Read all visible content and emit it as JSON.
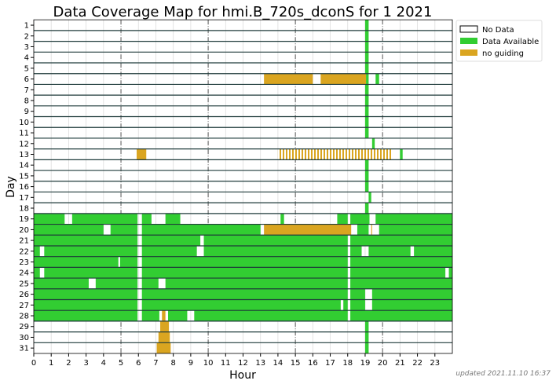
{
  "chart_data": {
    "type": "heatmap",
    "title": "Data Coverage Map for hmi.B_720s_dconS for 1 2021",
    "xlabel": "Hour",
    "ylabel": "Day",
    "xlim": [
      0,
      24
    ],
    "ylim": [
      31,
      1
    ],
    "x_ticks": [
      "0",
      "1",
      "2",
      "3",
      "4",
      "5",
      "6",
      "7",
      "8",
      "9",
      "10",
      "11",
      "12",
      "13",
      "14",
      "15",
      "16",
      "17",
      "18",
      "19",
      "20",
      "21",
      "22",
      "23"
    ],
    "y_ticks": [
      "1",
      "2",
      "3",
      "4",
      "5",
      "6",
      "7",
      "8",
      "9",
      "10",
      "11",
      "12",
      "13",
      "14",
      "15",
      "16",
      "17",
      "18",
      "19",
      "20",
      "21",
      "22",
      "23",
      "24",
      "25",
      "26",
      "27",
      "28",
      "29",
      "30",
      "31"
    ],
    "major_gridlines_hours": [
      5,
      10,
      15,
      20
    ],
    "legend": {
      "placement": "outside-top-right",
      "entries": [
        {
          "label": "No Data",
          "key": "none"
        },
        {
          "label": "Data Available",
          "key": "data"
        },
        {
          "label": "no guiding",
          "key": "noguide"
        }
      ]
    },
    "colors": {
      "data": "#32cd32",
      "noguide": "#daa520",
      "none": "#ffffff",
      "rowline": "#1e3a3a"
    },
    "days": [
      {
        "day": 1,
        "segments": [
          [
            19.0,
            19.2,
            "data"
          ]
        ]
      },
      {
        "day": 2,
        "segments": [
          [
            19.0,
            19.2,
            "data"
          ]
        ]
      },
      {
        "day": 3,
        "segments": [
          [
            19.0,
            19.2,
            "data"
          ]
        ]
      },
      {
        "day": 4,
        "segments": [
          [
            19.0,
            19.2,
            "data"
          ]
        ]
      },
      {
        "day": 5,
        "segments": [
          [
            19.0,
            19.2,
            "data"
          ]
        ]
      },
      {
        "day": 6,
        "segments": [
          [
            13.2,
            16.0,
            "noguide"
          ],
          [
            16.45,
            19.05,
            "noguide"
          ],
          [
            19.05,
            19.2,
            "data"
          ],
          [
            19.6,
            19.8,
            "data"
          ]
        ]
      },
      {
        "day": 7,
        "segments": [
          [
            19.0,
            19.2,
            "data"
          ]
        ]
      },
      {
        "day": 8,
        "segments": [
          [
            19.0,
            19.2,
            "data"
          ]
        ]
      },
      {
        "day": 9,
        "segments": [
          [
            19.0,
            19.2,
            "data"
          ]
        ]
      },
      {
        "day": 10,
        "segments": [
          [
            19.0,
            19.2,
            "data"
          ]
        ]
      },
      {
        "day": 11,
        "segments": [
          [
            19.0,
            19.2,
            "data"
          ]
        ]
      },
      {
        "day": 12,
        "segments": [
          [
            19.4,
            19.55,
            "data"
          ]
        ]
      },
      {
        "day": 13,
        "segments": [
          [
            5.9,
            6.45,
            "noguide"
          ],
          [
            14.0,
            20.55,
            "noguide_hatched"
          ],
          [
            21.0,
            21.15,
            "data"
          ]
        ]
      },
      {
        "day": 14,
        "segments": [
          [
            19.0,
            19.2,
            "data"
          ]
        ]
      },
      {
        "day": 15,
        "segments": [
          [
            19.0,
            19.2,
            "data"
          ]
        ]
      },
      {
        "day": 16,
        "segments": [
          [
            19.0,
            19.2,
            "data"
          ]
        ]
      },
      {
        "day": 17,
        "segments": [
          [
            19.2,
            19.35,
            "data"
          ]
        ]
      },
      {
        "day": 18,
        "segments": [
          [
            19.0,
            19.2,
            "data"
          ]
        ]
      },
      {
        "day": 19,
        "segments": [
          [
            0,
            1.77,
            "data"
          ],
          [
            2.2,
            5.95,
            "data"
          ],
          [
            6.2,
            6.75,
            "data"
          ],
          [
            7.55,
            8.4,
            "data"
          ],
          [
            14.15,
            14.35,
            "data"
          ],
          [
            17.4,
            18.0,
            "data"
          ],
          [
            18.15,
            19.25,
            "data"
          ],
          [
            19.6,
            24,
            "data"
          ]
        ]
      },
      {
        "day": 20,
        "segments": [
          [
            0,
            4.0,
            "data"
          ],
          [
            4.4,
            5.95,
            "data"
          ],
          [
            6.2,
            13.0,
            "data"
          ],
          [
            13.2,
            18.2,
            "noguide"
          ],
          [
            18.55,
            19.2,
            "data"
          ],
          [
            19.35,
            19.4,
            "noguide"
          ],
          [
            19.8,
            24,
            "data"
          ]
        ]
      },
      {
        "day": 21,
        "segments": [
          [
            0,
            5.95,
            "data"
          ],
          [
            6.2,
            9.55,
            "data"
          ],
          [
            9.75,
            18.0,
            "data"
          ],
          [
            18.15,
            24,
            "data"
          ]
        ]
      },
      {
        "day": 22,
        "segments": [
          [
            0,
            0.35,
            "data"
          ],
          [
            0.6,
            5.95,
            "data"
          ],
          [
            6.2,
            9.35,
            "data"
          ],
          [
            9.75,
            18.0,
            "data"
          ],
          [
            18.15,
            18.8,
            "data"
          ],
          [
            19.2,
            21.6,
            "data"
          ],
          [
            21.8,
            24,
            "data"
          ]
        ]
      },
      {
        "day": 23,
        "segments": [
          [
            0,
            4.85,
            "data"
          ],
          [
            4.95,
            5.95,
            "data"
          ],
          [
            6.2,
            18.0,
            "data"
          ],
          [
            18.15,
            24,
            "data"
          ]
        ]
      },
      {
        "day": 24,
        "segments": [
          [
            0,
            0.35,
            "data"
          ],
          [
            0.6,
            5.95,
            "data"
          ],
          [
            6.2,
            18.0,
            "data"
          ],
          [
            18.15,
            23.6,
            "data"
          ],
          [
            23.8,
            24,
            "data"
          ]
        ]
      },
      {
        "day": 25,
        "segments": [
          [
            0,
            3.15,
            "data"
          ],
          [
            3.55,
            5.95,
            "data"
          ],
          [
            6.2,
            7.15,
            "data"
          ],
          [
            7.55,
            18.0,
            "data"
          ],
          [
            18.15,
            24,
            "data"
          ]
        ]
      },
      {
        "day": 26,
        "segments": [
          [
            0,
            5.95,
            "data"
          ],
          [
            6.2,
            18.0,
            "data"
          ],
          [
            18.15,
            19.0,
            "data"
          ],
          [
            19.4,
            24,
            "data"
          ]
        ]
      },
      {
        "day": 27,
        "segments": [
          [
            0,
            5.95,
            "data"
          ],
          [
            6.2,
            17.6,
            "data"
          ],
          [
            17.75,
            18.0,
            "data"
          ],
          [
            18.15,
            19.0,
            "data"
          ],
          [
            19.4,
            24,
            "data"
          ]
        ]
      },
      {
        "day": 28,
        "segments": [
          [
            0,
            5.95,
            "data"
          ],
          [
            6.2,
            7.2,
            "data"
          ],
          [
            7.35,
            7.55,
            "noguide"
          ],
          [
            7.7,
            8.8,
            "data"
          ],
          [
            9.2,
            18.0,
            "data"
          ],
          [
            18.15,
            24,
            "data"
          ]
        ]
      },
      {
        "day": 29,
        "segments": [
          [
            7.25,
            7.75,
            "noguide"
          ],
          [
            19.0,
            19.2,
            "data"
          ]
        ]
      },
      {
        "day": 30,
        "segments": [
          [
            7.15,
            7.8,
            "noguide"
          ],
          [
            19.0,
            19.2,
            "data"
          ]
        ]
      },
      {
        "day": 31,
        "segments": [
          [
            7.05,
            7.85,
            "noguide"
          ],
          [
            19.0,
            19.2,
            "data"
          ]
        ]
      }
    ]
  },
  "footer": {
    "updated": "updated 2021.11.10 16:37"
  }
}
